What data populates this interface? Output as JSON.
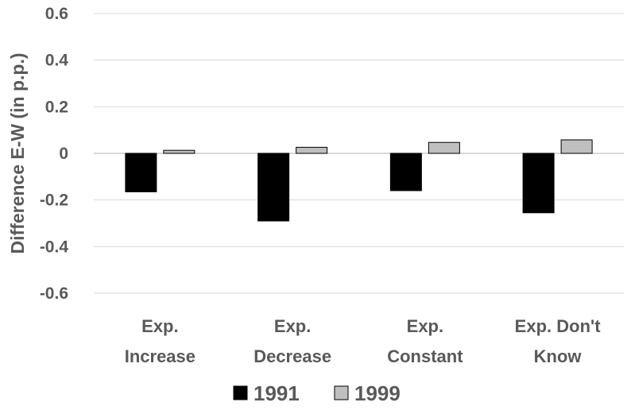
{
  "chart_data": {
    "type": "bar",
    "title": "",
    "xlabel": "",
    "ylabel": "Difference E-W (in p.p.)",
    "categories": [
      [
        "Exp.",
        "Increase"
      ],
      [
        "Exp.",
        "Decrease"
      ],
      [
        "Exp.",
        "Constant"
      ],
      [
        "Exp. Don't",
        "Know"
      ]
    ],
    "series": [
      {
        "name": "1991",
        "color": "#000000",
        "values": [
          -0.165,
          -0.29,
          -0.16,
          -0.255
        ]
      },
      {
        "name": "1999",
        "color": "#bfbfbf",
        "values": [
          0.013,
          0.026,
          0.047,
          0.058
        ]
      }
    ],
    "ylim": [
      -0.6,
      0.6
    ],
    "yticks": [
      0.6,
      0.4,
      0.2,
      0,
      -0.2,
      -0.4,
      -0.6
    ],
    "ytick_labels": [
      "0.6",
      "0.4",
      "0.2",
      "0",
      "-0.2",
      "-0.4",
      "-0.6"
    ],
    "grid": true,
    "legend_position": "bottom"
  }
}
